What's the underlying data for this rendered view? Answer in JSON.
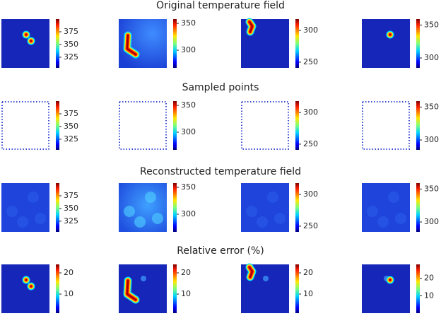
{
  "figure": {
    "rows": [
      {
        "title": "Original temperature field",
        "panels": [
          {
            "clim": [
              304,
              400
            ],
            "cticks": [
              325,
              350,
              375
            ]
          },
          {
            "clim": [
              267,
              358
            ],
            "cticks": [
              300,
              350
            ]
          },
          {
            "clim": [
              241,
              318
            ],
            "cticks": [
              250,
              300
            ]
          },
          {
            "clim": [
              285,
              359
            ],
            "cticks": [
              300,
              350
            ]
          }
        ]
      },
      {
        "title": "Sampled points",
        "panels": [
          {
            "clim": [
              304,
              400
            ],
            "cticks": [
              325,
              350,
              375
            ]
          },
          {
            "clim": [
              267,
              358
            ],
            "cticks": [
              300,
              350
            ]
          },
          {
            "clim": [
              241,
              318
            ],
            "cticks": [
              250,
              300
            ]
          },
          {
            "clim": [
              285,
              359
            ],
            "cticks": [
              300,
              350
            ]
          }
        ]
      },
      {
        "title": "Reconstructed temperature field",
        "panels": [
          {
            "clim": [
              304,
              400
            ],
            "cticks": [
              325,
              350,
              375
            ]
          },
          {
            "clim": [
              267,
              358
            ],
            "cticks": [
              300,
              350
            ]
          },
          {
            "clim": [
              241,
              318
            ],
            "cticks": [
              250,
              300
            ]
          },
          {
            "clim": [
              285,
              359
            ],
            "cticks": [
              300,
              350
            ]
          }
        ]
      },
      {
        "title": "Relative error (%)",
        "panels": [
          {
            "clim": [
              1,
              24
            ],
            "cticks": [
              10,
              20
            ]
          },
          {
            "clim": [
              1,
              24
            ],
            "cticks": [
              10,
              20
            ]
          },
          {
            "clim": [
              1,
              24
            ],
            "cticks": [
              10,
              20
            ]
          },
          {
            "clim": [
              0,
              28
            ],
            "cticks": [
              10,
              20
            ]
          }
        ]
      }
    ]
  }
}
